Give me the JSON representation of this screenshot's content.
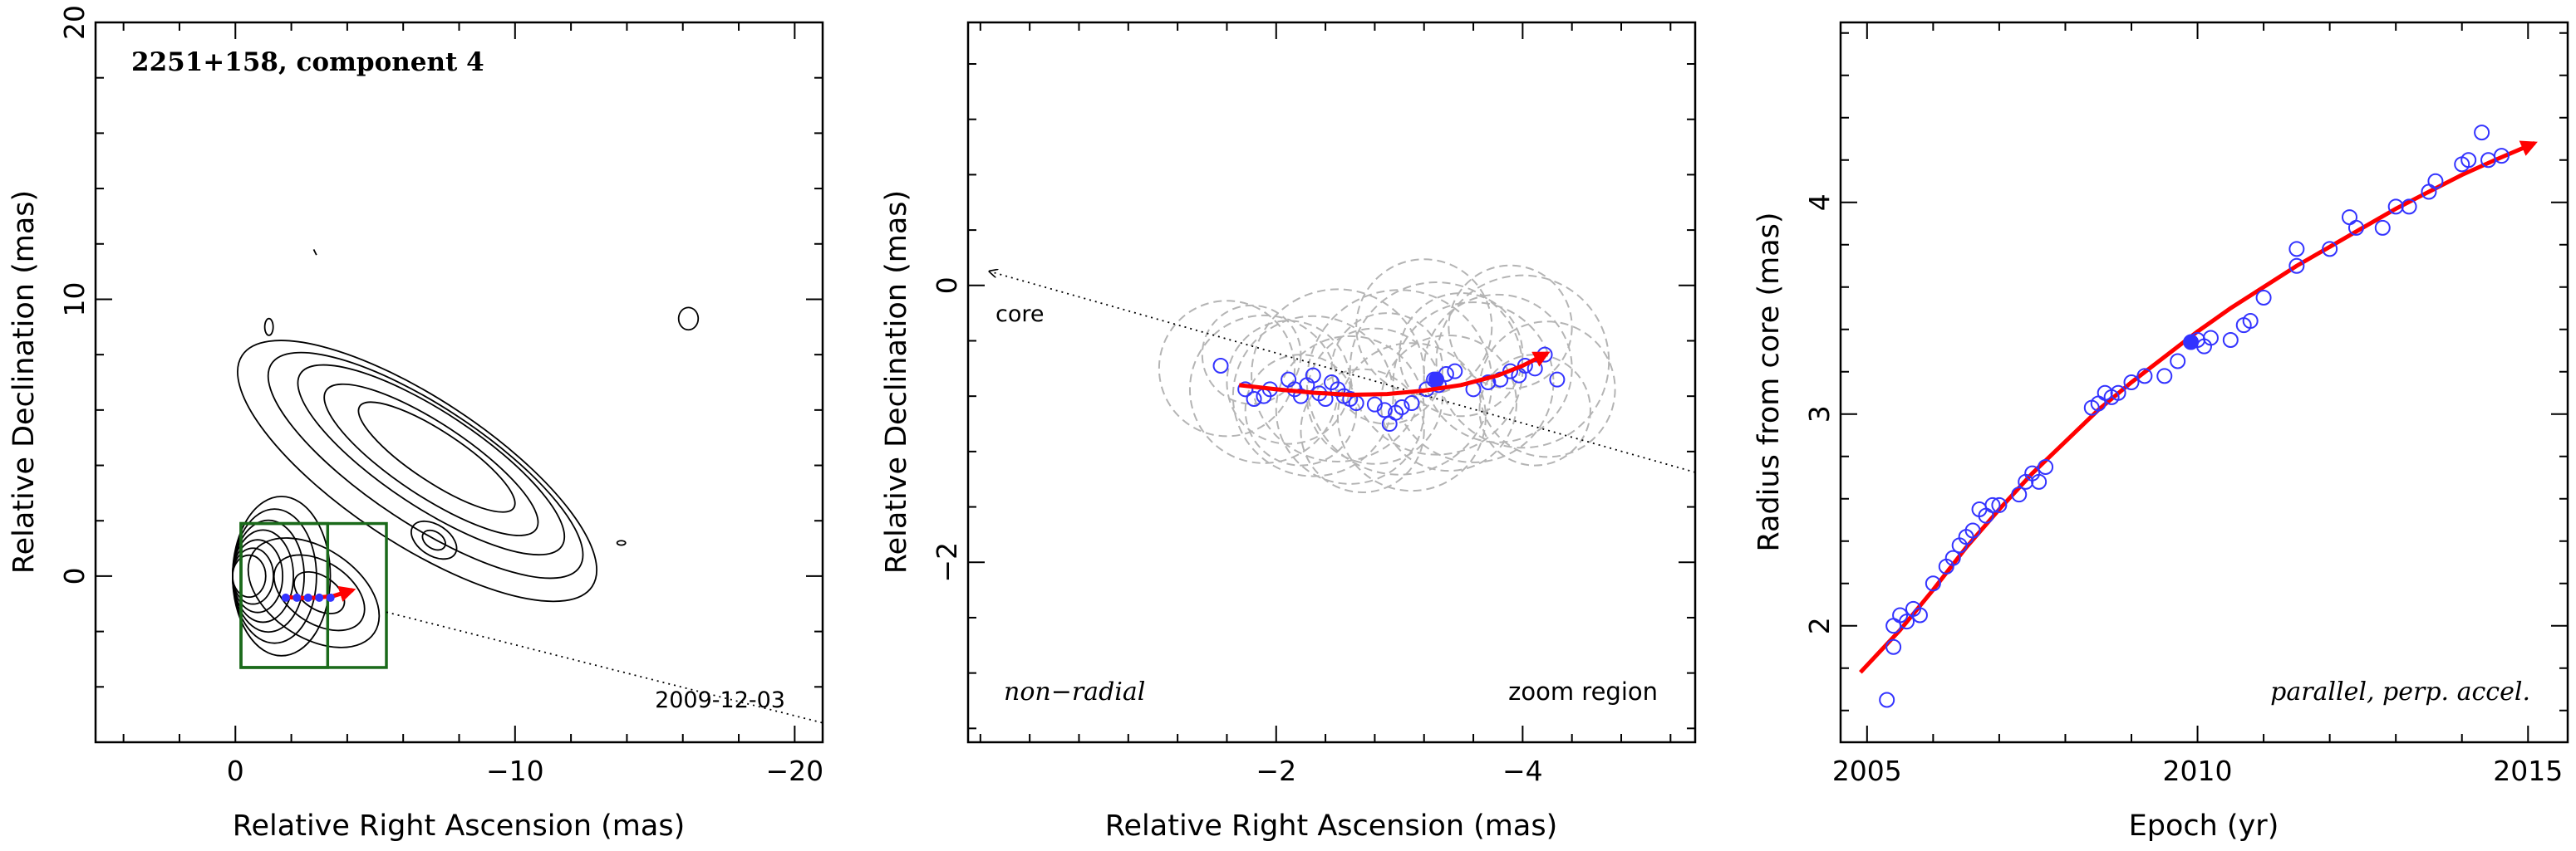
{
  "colors": {
    "contour": "#000000",
    "box": "#1a6a1a",
    "points": "#3333ff",
    "fit": "#ff0000",
    "circles": "#b4b4b4",
    "dotted": "#000000"
  },
  "chart_data": [
    {
      "type": "contour",
      "title": "2251+158, component 4",
      "xlabel": "Relative Right Ascension (mas)",
      "ylabel": "Relative Declination (mas)",
      "xlim": [
        5,
        -21
      ],
      "ylim": [
        -6,
        20
      ],
      "xticks": [
        0,
        -10,
        -20
      ],
      "yticks": [
        0,
        10,
        20
      ],
      "date_label": "2009-12-03",
      "boxes": [
        {
          "x0": -0.2,
          "x1": -5.4,
          "y0": -3.3,
          "y1": 1.9
        },
        {
          "x0": -0.2,
          "x1": -3.3,
          "y0": -3.3,
          "y1": 1.9
        }
      ],
      "trajectory": [
        {
          "x": -1.7,
          "y": -0.75
        },
        {
          "x": -2.3,
          "y": -0.79
        },
        {
          "x": -2.9,
          "y": -0.78
        },
        {
          "x": -3.5,
          "y": -0.72
        },
        {
          "x": -4.2,
          "y": -0.5
        }
      ]
    },
    {
      "type": "scatter",
      "xlabel": "Relative Right Ascension (mas)",
      "ylabel": "Relative Declination (mas)",
      "xlim": [
        0.5,
        -5.4
      ],
      "ylim": [
        -3.3,
        1.9
      ],
      "xticks": [
        -2,
        -4
      ],
      "yticks": [
        0,
        -2
      ],
      "core_label": "core",
      "left_note": "non−radial",
      "right_note": "zoom region",
      "points": [
        {
          "x": -1.55,
          "y": -0.58
        },
        {
          "x": -1.75,
          "y": -0.75
        },
        {
          "x": -1.82,
          "y": -0.82
        },
        {
          "x": -1.9,
          "y": -0.8
        },
        {
          "x": -1.95,
          "y": -0.75
        },
        {
          "x": -2.1,
          "y": -0.68
        },
        {
          "x": -2.15,
          "y": -0.75
        },
        {
          "x": -2.2,
          "y": -0.8
        },
        {
          "x": -2.25,
          "y": -0.72
        },
        {
          "x": -2.3,
          "y": -0.65
        },
        {
          "x": -2.35,
          "y": -0.78
        },
        {
          "x": -2.4,
          "y": -0.82
        },
        {
          "x": -2.45,
          "y": -0.7
        },
        {
          "x": -2.5,
          "y": -0.75
        },
        {
          "x": -2.55,
          "y": -0.8
        },
        {
          "x": -2.6,
          "y": -0.82
        },
        {
          "x": -2.65,
          "y": -0.85
        },
        {
          "x": -2.8,
          "y": -0.86
        },
        {
          "x": -2.88,
          "y": -0.9
        },
        {
          "x": -2.92,
          "y": -1.0
        },
        {
          "x": -2.97,
          "y": -0.92
        },
        {
          "x": -3.02,
          "y": -0.88
        },
        {
          "x": -3.1,
          "y": -0.85
        },
        {
          "x": -3.22,
          "y": -0.75
        },
        {
          "x": -3.28,
          "y": -0.68
        },
        {
          "x": -3.32,
          "y": -0.72
        },
        {
          "x": -3.38,
          "y": -0.64
        },
        {
          "x": -3.45,
          "y": -0.62
        },
        {
          "x": -3.6,
          "y": -0.75
        },
        {
          "x": -3.72,
          "y": -0.7
        },
        {
          "x": -3.82,
          "y": -0.68
        },
        {
          "x": -3.9,
          "y": -0.62
        },
        {
          "x": -3.97,
          "y": -0.65
        },
        {
          "x": -4.02,
          "y": -0.58
        },
        {
          "x": -4.1,
          "y": -0.6
        },
        {
          "x": -4.18,
          "y": -0.5
        },
        {
          "x": -4.28,
          "y": -0.68
        }
      ],
      "highlight": {
        "x": -3.3,
        "y": -0.68
      },
      "trajectory": [
        {
          "x": -1.7,
          "y": -0.72
        },
        {
          "x": -2.0,
          "y": -0.75
        },
        {
          "x": -2.3,
          "y": -0.775
        },
        {
          "x": -2.6,
          "y": -0.79
        },
        {
          "x": -2.9,
          "y": -0.785
        },
        {
          "x": -3.2,
          "y": -0.76
        },
        {
          "x": -3.5,
          "y": -0.72
        },
        {
          "x": -3.8,
          "y": -0.65
        },
        {
          "x": -4.0,
          "y": -0.58
        },
        {
          "x": -4.2,
          "y": -0.49
        }
      ],
      "core_line": [
        {
          "x": 0.5,
          "y": 0.1
        },
        {
          "x": -5.4,
          "y": -1.35
        }
      ]
    },
    {
      "type": "scatter",
      "xlabel": "Epoch (yr)",
      "ylabel": "Radius from core (mas)",
      "xlim": [
        2004.6,
        2015.6
      ],
      "ylim": [
        1.45,
        4.85
      ],
      "xticks": [
        2005,
        2010,
        2015
      ],
      "yticks": [
        2,
        3,
        4
      ],
      "note": "parallel, perp. accel.",
      "points": [
        {
          "x": 2005.3,
          "y": 1.65
        },
        {
          "x": 2005.4,
          "y": 1.9
        },
        {
          "x": 2005.4,
          "y": 2.0
        },
        {
          "x": 2005.5,
          "y": 2.05
        },
        {
          "x": 2005.6,
          "y": 2.02
        },
        {
          "x": 2005.7,
          "y": 2.08
        },
        {
          "x": 2005.8,
          "y": 2.05
        },
        {
          "x": 2006.0,
          "y": 2.2
        },
        {
          "x": 2006.2,
          "y": 2.28
        },
        {
          "x": 2006.3,
          "y": 2.32
        },
        {
          "x": 2006.4,
          "y": 2.38
        },
        {
          "x": 2006.5,
          "y": 2.42
        },
        {
          "x": 2006.6,
          "y": 2.45
        },
        {
          "x": 2006.7,
          "y": 2.55
        },
        {
          "x": 2006.8,
          "y": 2.52
        },
        {
          "x": 2006.9,
          "y": 2.57
        },
        {
          "x": 2007.0,
          "y": 2.57
        },
        {
          "x": 2007.3,
          "y": 2.62
        },
        {
          "x": 2007.4,
          "y": 2.68
        },
        {
          "x": 2007.5,
          "y": 2.72
        },
        {
          "x": 2007.6,
          "y": 2.68
        },
        {
          "x": 2007.7,
          "y": 2.75
        },
        {
          "x": 2008.4,
          "y": 3.03
        },
        {
          "x": 2008.5,
          "y": 3.05
        },
        {
          "x": 2008.6,
          "y": 3.1
        },
        {
          "x": 2008.7,
          "y": 3.08
        },
        {
          "x": 2008.8,
          "y": 3.1
        },
        {
          "x": 2009.0,
          "y": 3.15
        },
        {
          "x": 2009.2,
          "y": 3.18
        },
        {
          "x": 2009.5,
          "y": 3.18
        },
        {
          "x": 2009.7,
          "y": 3.25
        },
        {
          "x": 2010.0,
          "y": 3.35
        },
        {
          "x": 2010.1,
          "y": 3.32
        },
        {
          "x": 2010.2,
          "y": 3.36
        },
        {
          "x": 2010.5,
          "y": 3.35
        },
        {
          "x": 2010.7,
          "y": 3.42
        },
        {
          "x": 2010.8,
          "y": 3.44
        },
        {
          "x": 2011.0,
          "y": 3.55
        },
        {
          "x": 2011.5,
          "y": 3.7
        },
        {
          "x": 2011.5,
          "y": 3.78
        },
        {
          "x": 2012.0,
          "y": 3.78
        },
        {
          "x": 2012.3,
          "y": 3.93
        },
        {
          "x": 2012.4,
          "y": 3.88
        },
        {
          "x": 2012.8,
          "y": 3.88
        },
        {
          "x": 2013.0,
          "y": 3.98
        },
        {
          "x": 2013.2,
          "y": 3.98
        },
        {
          "x": 2013.5,
          "y": 4.05
        },
        {
          "x": 2013.6,
          "y": 4.1
        },
        {
          "x": 2014.0,
          "y": 4.18
        },
        {
          "x": 2014.1,
          "y": 4.2
        },
        {
          "x": 2014.3,
          "y": 4.33
        },
        {
          "x": 2014.4,
          "y": 4.2
        },
        {
          "x": 2014.6,
          "y": 4.22
        }
      ],
      "highlight": {
        "x": 2009.9,
        "y": 3.34
      },
      "trajectory": [
        {
          "x": 2004.9,
          "y": 1.78
        },
        {
          "x": 2005.5,
          "y": 1.98
        },
        {
          "x": 2006.0,
          "y": 2.17
        },
        {
          "x": 2006.5,
          "y": 2.37
        },
        {
          "x": 2007.0,
          "y": 2.55
        },
        {
          "x": 2007.5,
          "y": 2.72
        },
        {
          "x": 2008.0,
          "y": 2.87
        },
        {
          "x": 2008.5,
          "y": 3.02
        },
        {
          "x": 2009.0,
          "y": 3.15
        },
        {
          "x": 2009.5,
          "y": 3.27
        },
        {
          "x": 2010.0,
          "y": 3.39
        },
        {
          "x": 2010.5,
          "y": 3.5
        },
        {
          "x": 2011.0,
          "y": 3.6
        },
        {
          "x": 2011.5,
          "y": 3.7
        },
        {
          "x": 2012.0,
          "y": 3.79
        },
        {
          "x": 2012.5,
          "y": 3.88
        },
        {
          "x": 2013.0,
          "y": 3.97
        },
        {
          "x": 2013.5,
          "y": 4.05
        },
        {
          "x": 2014.0,
          "y": 4.13
        },
        {
          "x": 2014.5,
          "y": 4.2
        },
        {
          "x": 2015.1,
          "y": 4.28
        }
      ]
    }
  ]
}
